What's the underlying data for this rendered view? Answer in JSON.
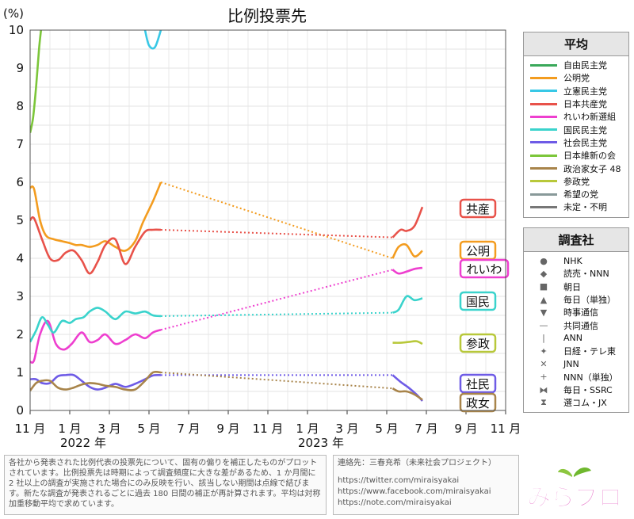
{
  "chart_data": {
    "type": "line",
    "title": "比例投票先",
    "ylabel": "(%)",
    "ylim": [
      0,
      10
    ],
    "yticks": [
      "0",
      "1",
      "2",
      "3",
      "4",
      "5",
      "6",
      "7",
      "8",
      "9",
      "10"
    ],
    "xticks": [
      "11 月",
      "1 月",
      "3 月",
      "5 月",
      "7 月",
      "9 月",
      "11 月",
      "1 月",
      "3 月",
      "5 月",
      "7 月",
      "9 月",
      "11 月"
    ],
    "year_labels": [
      "2022 年",
      "2023 年"
    ],
    "grid": true,
    "series": [
      {
        "name": "自由民主党",
        "color": "#3aa85a",
        "points": []
      },
      {
        "name": "公明党",
        "color": "#f39c1f",
        "points": [
          [
            0,
            5.85
          ],
          [
            0.2,
            5.82
          ],
          [
            0.5,
            5.0
          ],
          [
            0.8,
            4.6
          ],
          [
            1.2,
            4.5
          ],
          [
            1.6,
            4.45
          ],
          [
            2.0,
            4.4
          ],
          [
            2.3,
            4.35
          ],
          [
            2.6,
            4.35
          ],
          [
            3.0,
            4.3
          ],
          [
            3.4,
            4.35
          ],
          [
            3.8,
            4.45
          ],
          [
            4.3,
            4.3
          ],
          [
            4.8,
            4.2
          ],
          [
            5.3,
            4.45
          ],
          [
            5.7,
            4.95
          ],
          [
            6.2,
            5.5
          ],
          [
            6.6,
            6.0
          ]
        ],
        "gap": [
          [
            6.6,
            6.0
          ],
          [
            18.3,
            4.0
          ]
        ],
        "points2": [
          [
            18.3,
            4.0
          ],
          [
            18.6,
            4.3
          ],
          [
            19.0,
            4.35
          ],
          [
            19.4,
            4.05
          ],
          [
            19.8,
            4.2
          ]
        ]
      },
      {
        "name": "立憲民主党",
        "color": "#38c8e6",
        "points": [
          [
            5.8,
            10.0
          ],
          [
            6.0,
            9.6
          ],
          [
            6.3,
            9.55
          ],
          [
            6.6,
            10.0
          ]
        ],
        "gap": [],
        "points2": []
      },
      {
        "name": "日本共産党",
        "color": "#e8524a",
        "points": [
          [
            0,
            5.0
          ],
          [
            0.2,
            5.05
          ],
          [
            0.6,
            4.5
          ],
          [
            1.0,
            4.0
          ],
          [
            1.4,
            3.95
          ],
          [
            1.8,
            4.15
          ],
          [
            2.2,
            4.2
          ],
          [
            2.6,
            3.95
          ],
          [
            3.0,
            3.6
          ],
          [
            3.4,
            3.9
          ],
          [
            3.8,
            4.35
          ],
          [
            4.3,
            4.5
          ],
          [
            4.8,
            3.85
          ],
          [
            5.3,
            4.3
          ],
          [
            5.8,
            4.7
          ],
          [
            6.2,
            4.75
          ],
          [
            6.6,
            4.75
          ]
        ],
        "gap": [
          [
            6.6,
            4.75
          ],
          [
            18.3,
            4.55
          ]
        ],
        "points2": [
          [
            18.3,
            4.55
          ],
          [
            18.7,
            4.75
          ],
          [
            19.0,
            4.72
          ],
          [
            19.4,
            4.85
          ],
          [
            19.8,
            5.35
          ]
        ]
      },
      {
        "name": "れいわ新選組",
        "color": "#ee3fcf",
        "points": [
          [
            0,
            1.28
          ],
          [
            0.2,
            1.32
          ],
          [
            0.5,
            2.0
          ],
          [
            0.9,
            2.35
          ],
          [
            1.3,
            1.75
          ],
          [
            1.7,
            1.6
          ],
          [
            2.1,
            1.75
          ],
          [
            2.6,
            2.05
          ],
          [
            3.0,
            1.8
          ],
          [
            3.4,
            1.85
          ],
          [
            3.8,
            2.0
          ],
          [
            4.3,
            1.75
          ],
          [
            4.8,
            1.85
          ],
          [
            5.3,
            2.0
          ],
          [
            5.8,
            1.9
          ],
          [
            6.2,
            2.05
          ],
          [
            6.6,
            2.12
          ]
        ],
        "gap": [
          [
            6.6,
            2.12
          ],
          [
            18.3,
            3.7
          ]
        ],
        "points2": [
          [
            18.3,
            3.7
          ],
          [
            18.6,
            3.6
          ],
          [
            19.0,
            3.65
          ],
          [
            19.4,
            3.72
          ],
          [
            19.8,
            3.75
          ]
        ]
      },
      {
        "name": "国民民主党",
        "color": "#3ad3cc",
        "points": [
          [
            0,
            1.8
          ],
          [
            0.3,
            2.1
          ],
          [
            0.6,
            2.45
          ],
          [
            0.9,
            2.25
          ],
          [
            1.2,
            2.05
          ],
          [
            1.6,
            2.35
          ],
          [
            2.0,
            2.3
          ],
          [
            2.3,
            2.4
          ],
          [
            2.7,
            2.45
          ],
          [
            3.0,
            2.6
          ],
          [
            3.4,
            2.7
          ],
          [
            3.8,
            2.6
          ],
          [
            4.3,
            2.4
          ],
          [
            4.8,
            2.6
          ],
          [
            5.3,
            2.55
          ],
          [
            5.8,
            2.6
          ],
          [
            6.2,
            2.5
          ],
          [
            6.6,
            2.48
          ]
        ],
        "gap": [
          [
            6.6,
            2.48
          ],
          [
            18.3,
            2.57
          ]
        ],
        "points2": [
          [
            18.3,
            2.57
          ],
          [
            18.6,
            2.65
          ],
          [
            19.0,
            3.0
          ],
          [
            19.4,
            2.9
          ],
          [
            19.8,
            2.95
          ]
        ]
      },
      {
        "name": "社会民主党",
        "color": "#6e5be6",
        "points": [
          [
            0,
            0.82
          ],
          [
            0.3,
            0.82
          ],
          [
            0.6,
            0.72
          ],
          [
            1.0,
            0.72
          ],
          [
            1.4,
            0.9
          ],
          [
            1.8,
            0.93
          ],
          [
            2.2,
            0.93
          ],
          [
            2.6,
            0.78
          ],
          [
            3.0,
            0.62
          ],
          [
            3.4,
            0.55
          ],
          [
            3.8,
            0.6
          ],
          [
            4.3,
            0.7
          ],
          [
            4.8,
            0.62
          ],
          [
            5.3,
            0.7
          ],
          [
            5.8,
            0.82
          ],
          [
            6.2,
            0.92
          ],
          [
            6.6,
            0.93
          ]
        ],
        "gap": [
          [
            6.6,
            0.93
          ],
          [
            18.3,
            0.93
          ]
        ],
        "points2": [
          [
            18.3,
            0.93
          ],
          [
            18.7,
            0.75
          ],
          [
            19.1,
            0.6
          ],
          [
            19.5,
            0.42
          ],
          [
            19.8,
            0.25
          ]
        ]
      },
      {
        "name": "日本維新の会",
        "color": "#7cc63a",
        "points": [
          [
            0,
            7.3
          ],
          [
            0.15,
            7.7
          ],
          [
            0.3,
            8.5
          ],
          [
            0.45,
            9.5
          ],
          [
            0.55,
            10.0
          ]
        ],
        "gap": [],
        "points2": []
      },
      {
        "name": "政治家女子 48",
        "color": "#a8844a",
        "points": [
          [
            0,
            0.52
          ],
          [
            0.3,
            0.72
          ],
          [
            0.6,
            0.78
          ],
          [
            1.0,
            0.78
          ],
          [
            1.4,
            0.6
          ],
          [
            1.8,
            0.55
          ],
          [
            2.2,
            0.6
          ],
          [
            2.6,
            0.68
          ],
          [
            3.0,
            0.72
          ],
          [
            3.4,
            0.7
          ],
          [
            3.8,
            0.65
          ],
          [
            4.3,
            0.62
          ],
          [
            4.8,
            0.55
          ],
          [
            5.3,
            0.55
          ],
          [
            5.8,
            0.78
          ],
          [
            6.2,
            1.0
          ],
          [
            6.6,
            1.0
          ]
        ],
        "gap": [
          [
            6.6,
            1.0
          ],
          [
            18.3,
            0.58
          ]
        ],
        "points2": [
          [
            18.3,
            0.58
          ],
          [
            18.6,
            0.5
          ],
          [
            19.0,
            0.5
          ],
          [
            19.4,
            0.42
          ],
          [
            19.8,
            0.28
          ]
        ]
      },
      {
        "name": "参政党",
        "color": "#b8c83a",
        "points": [],
        "gap": [],
        "points2": [
          [
            18.3,
            1.78
          ],
          [
            18.7,
            1.78
          ],
          [
            19.1,
            1.8
          ],
          [
            19.5,
            1.82
          ],
          [
            19.8,
            1.75
          ]
        ]
      },
      {
        "name": "希望の党",
        "color": "#889999",
        "points": []
      },
      {
        "name": "未定・不明",
        "color": "#777777",
        "points": []
      }
    ],
    "end_labels": [
      {
        "text": "共産",
        "color": "#e8524a",
        "value": 5.3
      },
      {
        "text": "公明",
        "color": "#f39c1f",
        "value": 4.2
      },
      {
        "text": "れいわ",
        "color": "#ee3fcf",
        "value": 3.7
      },
      {
        "text": "国民",
        "color": "#3ad3cc",
        "value": 2.95
      },
      {
        "text": "参政",
        "color": "#b8c83a",
        "value": 1.8
      },
      {
        "text": "社民",
        "color": "#6e5be6",
        "value": 0.7
      },
      {
        "text": "政女",
        "color": "#a8844a",
        "value": 0.22
      }
    ]
  },
  "legend_avg": {
    "title": "平均",
    "items": [
      {
        "label": "自由民主党",
        "color": "#3aa85a"
      },
      {
        "label": "公明党",
        "color": "#f39c1f"
      },
      {
        "label": "立憲民主党",
        "color": "#38c8e6"
      },
      {
        "label": "日本共産党",
        "color": "#e8524a"
      },
      {
        "label": "れいわ新選組",
        "color": "#ee3fcf"
      },
      {
        "label": "国民民主党",
        "color": "#3ad3cc"
      },
      {
        "label": "社会民主党",
        "color": "#6e5be6"
      },
      {
        "label": "日本維新の会",
        "color": "#7cc63a"
      },
      {
        "label": "政治家女子 48",
        "color": "#a8844a"
      },
      {
        "label": "参政党",
        "color": "#b8c83a"
      },
      {
        "label": "希望の党",
        "color": "#889999"
      },
      {
        "label": "未定・不明",
        "color": "#777777"
      }
    ]
  },
  "legend_pollster": {
    "title": "調査社",
    "items": [
      {
        "label": "NHK",
        "marker": "●"
      },
      {
        "label": "読売・NNN",
        "marker": "◆"
      },
      {
        "label": "朝日",
        "marker": "■"
      },
      {
        "label": "毎日（単独）",
        "marker": "▲"
      },
      {
        "label": "時事通信",
        "marker": "▼"
      },
      {
        "label": "共同通信",
        "marker": "—"
      },
      {
        "label": "ANN",
        "marker": "|"
      },
      {
        "label": "日経・テレ東",
        "marker": "✦"
      },
      {
        "label": "JNN",
        "marker": "✕"
      },
      {
        "label": "NNN（単独）",
        "marker": "+"
      },
      {
        "label": "毎日・SSRC",
        "marker": "⧓"
      },
      {
        "label": "選コム・JX",
        "marker": "⧗"
      }
    ]
  },
  "footnote": "各社から発表された比例代表の投票先について、固有の偏りを補正したものがプロットされています。比例投票先は時期によって調査頻度に大きな差があるため、1 か月間に 2 社以上の調査が実施された場合にのみ反映を行い、該当しない期間は点線で結びます。新たな調査が発表されるごとに過去 180 日間の補正が再計算されます。平均は対称加重移動平均で求めています。",
  "contact": {
    "label": "連絡先：三春充希（未来社会プロジェクト）",
    "links": [
      "https://twitter.com/miraisyakai",
      "https://www.facebook.com/miraisyakai",
      "https://note.com/miraisyakai"
    ]
  },
  "logo_text": "みらプロ"
}
